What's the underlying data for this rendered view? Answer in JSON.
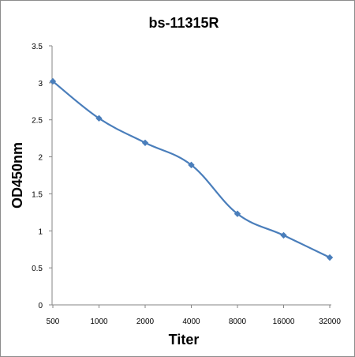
{
  "chart_data": {
    "type": "line",
    "title": "bs-11315R",
    "xlabel": "Titer",
    "ylabel": "OD450nm",
    "categories": [
      "500",
      "1000",
      "2000",
      "4000",
      "8000",
      "16000",
      "32000"
    ],
    "series": [
      {
        "values": [
          3.02,
          2.52,
          2.19,
          1.89,
          1.23,
          0.94,
          0.64
        ]
      }
    ],
    "ylim": [
      0,
      3.5
    ],
    "yticks": [
      "0",
      "0.5",
      "1",
      "1.5",
      "2",
      "2.5",
      "3",
      "3.5"
    ],
    "grid": false,
    "legend": "none",
    "marker": "diamond",
    "line_color": "#4a7ebb"
  }
}
